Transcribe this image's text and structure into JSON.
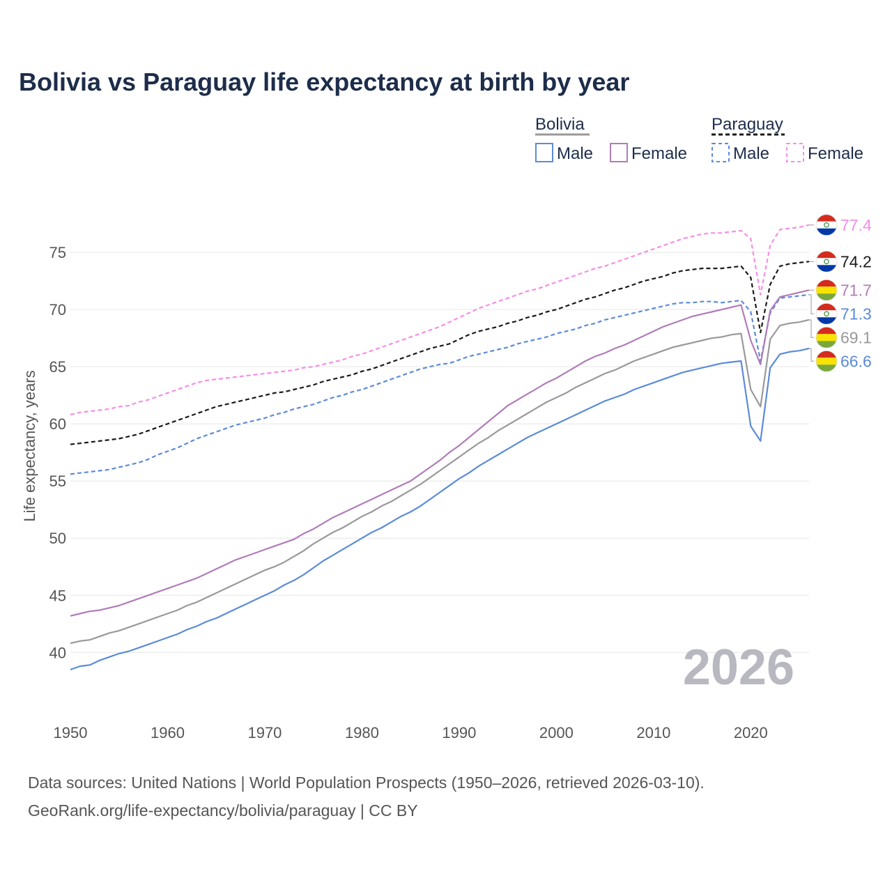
{
  "colors": {
    "bolivia_male": "#5b8bd9",
    "bolivia_female": "#b07cb8",
    "bolivia_total": "#999999",
    "paraguay_male": "#5b8bd9",
    "paraguay_female": "#f58ee6",
    "paraguay_total": "#1a1a1a",
    "title": "#1d2d4a",
    "text": "#555555",
    "grid": "#e6e6e6",
    "watermark": "#b8b8c0"
  },
  "chart_data": {
    "type": "line",
    "title": "Bolivia vs Paraguay life expectancy at birth by year",
    "ylabel": "Life expectancy, years",
    "xlabel": "",
    "xlim": [
      1950,
      2026
    ],
    "ylim": [
      35.2,
      79.4
    ],
    "x_ticks": [
      "1950",
      "1960",
      "1970",
      "1980",
      "1990",
      "2000",
      "2010",
      "2020"
    ],
    "y_ticks": [
      "40",
      "45",
      "50",
      "55",
      "60",
      "65",
      "70",
      "75"
    ],
    "grid": true,
    "current_year": "2026",
    "legend": {
      "groups": [
        {
          "name": "Bolivia",
          "entries": [
            "Male",
            "Female"
          ]
        },
        {
          "name": "Paraguay",
          "entries": [
            "Male",
            "Female"
          ]
        }
      ]
    },
    "x": [
      1950,
      1951,
      1952,
      1953,
      1954,
      1955,
      1956,
      1957,
      1958,
      1959,
      1960,
      1961,
      1962,
      1963,
      1964,
      1965,
      1966,
      1967,
      1968,
      1969,
      1970,
      1971,
      1972,
      1973,
      1974,
      1975,
      1976,
      1977,
      1978,
      1979,
      1980,
      1981,
      1982,
      1983,
      1984,
      1985,
      1986,
      1987,
      1988,
      1989,
      1990,
      1991,
      1992,
      1993,
      1994,
      1995,
      1996,
      1997,
      1998,
      1999,
      2000,
      2001,
      2002,
      2003,
      2004,
      2005,
      2006,
      2007,
      2008,
      2009,
      2010,
      2011,
      2012,
      2013,
      2014,
      2015,
      2016,
      2017,
      2018,
      2019,
      2020,
      2021,
      2022,
      2023,
      2024,
      2025,
      2026
    ],
    "series": [
      {
        "name": "Paraguay Female",
        "country": "Paraguay",
        "sex": "Female",
        "end_label": "77.4",
        "values": [
          60.8,
          61.0,
          61.1,
          61.2,
          61.3,
          61.5,
          61.6,
          61.9,
          62.1,
          62.4,
          62.7,
          63.0,
          63.3,
          63.6,
          63.8,
          63.9,
          64.0,
          64.1,
          64.2,
          64.3,
          64.4,
          64.5,
          64.6,
          64.7,
          64.9,
          65.0,
          65.2,
          65.4,
          65.6,
          65.9,
          66.1,
          66.4,
          66.7,
          67.0,
          67.3,
          67.6,
          67.9,
          68.2,
          68.5,
          68.9,
          69.3,
          69.7,
          70.1,
          70.4,
          70.7,
          71.0,
          71.3,
          71.6,
          71.8,
          72.1,
          72.4,
          72.7,
          73.0,
          73.3,
          73.6,
          73.8,
          74.1,
          74.4,
          74.7,
          75.0,
          75.3,
          75.6,
          75.9,
          76.2,
          76.4,
          76.6,
          76.7,
          76.7,
          76.8,
          76.9,
          76.2,
          71.3,
          75.6,
          77.0,
          77.1,
          77.2,
          77.4
        ]
      },
      {
        "name": "Paraguay",
        "country": "Paraguay",
        "sex": "Total",
        "end_label": "74.2",
        "values": [
          58.2,
          58.3,
          58.4,
          58.5,
          58.6,
          58.7,
          58.9,
          59.1,
          59.4,
          59.7,
          60.0,
          60.3,
          60.6,
          60.9,
          61.2,
          61.5,
          61.7,
          61.9,
          62.1,
          62.3,
          62.5,
          62.7,
          62.8,
          63.0,
          63.2,
          63.4,
          63.7,
          63.9,
          64.1,
          64.3,
          64.6,
          64.8,
          65.1,
          65.4,
          65.7,
          66.0,
          66.3,
          66.6,
          66.8,
          67.0,
          67.4,
          67.8,
          68.1,
          68.3,
          68.5,
          68.8,
          69.0,
          69.3,
          69.5,
          69.8,
          70.0,
          70.3,
          70.6,
          70.9,
          71.1,
          71.4,
          71.7,
          71.9,
          72.2,
          72.5,
          72.7,
          72.9,
          73.2,
          73.4,
          73.5,
          73.6,
          73.6,
          73.6,
          73.7,
          73.8,
          72.8,
          68.0,
          72.2,
          73.8,
          74.0,
          74.1,
          74.2
        ]
      },
      {
        "name": "Paraguay Male",
        "country": "Paraguay",
        "sex": "Male",
        "end_label": "71.3",
        "values": [
          55.6,
          55.7,
          55.8,
          55.9,
          56.0,
          56.2,
          56.4,
          56.6,
          56.9,
          57.3,
          57.6,
          57.9,
          58.3,
          58.7,
          59.0,
          59.3,
          59.6,
          59.9,
          60.1,
          60.3,
          60.5,
          60.8,
          61.0,
          61.3,
          61.5,
          61.7,
          62.0,
          62.3,
          62.5,
          62.8,
          63.0,
          63.3,
          63.6,
          63.9,
          64.2,
          64.5,
          64.8,
          65.0,
          65.2,
          65.3,
          65.6,
          65.9,
          66.1,
          66.3,
          66.5,
          66.7,
          67.0,
          67.2,
          67.4,
          67.6,
          67.9,
          68.1,
          68.3,
          68.6,
          68.8,
          69.1,
          69.3,
          69.5,
          69.7,
          69.9,
          70.1,
          70.3,
          70.5,
          70.6,
          70.6,
          70.7,
          70.7,
          70.6,
          70.7,
          70.8,
          69.8,
          65.5,
          69.7,
          71.0,
          71.1,
          71.2,
          71.3
        ]
      },
      {
        "name": "Bolivia Female",
        "country": "Bolivia",
        "sex": "Female",
        "end_label": "71.7",
        "values": [
          43.2,
          43.4,
          43.6,
          43.7,
          43.9,
          44.1,
          44.4,
          44.7,
          45.0,
          45.3,
          45.6,
          45.9,
          46.2,
          46.5,
          46.9,
          47.3,
          47.7,
          48.1,
          48.4,
          48.7,
          49.0,
          49.3,
          49.6,
          49.9,
          50.4,
          50.8,
          51.3,
          51.8,
          52.2,
          52.6,
          53.0,
          53.4,
          53.8,
          54.2,
          54.6,
          55.0,
          55.6,
          56.2,
          56.8,
          57.5,
          58.1,
          58.8,
          59.5,
          60.2,
          60.9,
          61.6,
          62.1,
          62.6,
          63.1,
          63.6,
          64.0,
          64.5,
          65.0,
          65.5,
          65.9,
          66.2,
          66.6,
          66.9,
          67.3,
          67.7,
          68.1,
          68.5,
          68.8,
          69.1,
          69.4,
          69.6,
          69.8,
          70.0,
          70.2,
          70.4,
          67.3,
          65.2,
          69.9,
          71.1,
          71.3,
          71.5,
          71.7
        ]
      },
      {
        "name": "Bolivia",
        "country": "Bolivia",
        "sex": "Total",
        "end_label": "69.1",
        "values": [
          40.8,
          41.0,
          41.1,
          41.4,
          41.7,
          41.9,
          42.2,
          42.5,
          42.8,
          43.1,
          43.4,
          43.7,
          44.1,
          44.4,
          44.8,
          45.2,
          45.6,
          46.0,
          46.4,
          46.8,
          47.2,
          47.5,
          47.9,
          48.4,
          48.9,
          49.5,
          50.0,
          50.5,
          50.9,
          51.4,
          51.9,
          52.3,
          52.8,
          53.2,
          53.7,
          54.2,
          54.7,
          55.3,
          55.9,
          56.5,
          57.1,
          57.7,
          58.3,
          58.8,
          59.4,
          59.9,
          60.4,
          60.9,
          61.4,
          61.9,
          62.3,
          62.7,
          63.2,
          63.6,
          64.0,
          64.4,
          64.7,
          65.1,
          65.5,
          65.8,
          66.1,
          66.4,
          66.7,
          66.9,
          67.1,
          67.3,
          67.5,
          67.6,
          67.8,
          67.9,
          63.0,
          61.5,
          67.4,
          68.6,
          68.8,
          68.9,
          69.1
        ]
      },
      {
        "name": "Bolivia Male",
        "country": "Bolivia",
        "sex": "Male",
        "end_label": "66.6",
        "values": [
          38.5,
          38.8,
          38.9,
          39.3,
          39.6,
          39.9,
          40.1,
          40.4,
          40.7,
          41.0,
          41.3,
          41.6,
          42.0,
          42.3,
          42.7,
          43.0,
          43.4,
          43.8,
          44.2,
          44.6,
          45.0,
          45.4,
          45.9,
          46.3,
          46.8,
          47.4,
          48.0,
          48.5,
          49.0,
          49.5,
          50.0,
          50.5,
          50.9,
          51.4,
          51.9,
          52.3,
          52.8,
          53.4,
          54.0,
          54.6,
          55.2,
          55.7,
          56.3,
          56.8,
          57.3,
          57.8,
          58.3,
          58.8,
          59.2,
          59.6,
          60.0,
          60.4,
          60.8,
          61.2,
          61.6,
          62.0,
          62.3,
          62.6,
          63.0,
          63.3,
          63.6,
          63.9,
          64.2,
          64.5,
          64.7,
          64.9,
          65.1,
          65.3,
          65.4,
          65.5,
          59.8,
          58.5,
          64.9,
          66.1,
          66.3,
          66.4,
          66.6
        ]
      }
    ]
  },
  "footer": {
    "source": "Data sources: United Nations | World Population Prospects (1950–2026, retrieved 2026-03-10).",
    "url": "GeoRank.org/life-expectancy/bolivia/paraguay | CC BY"
  }
}
